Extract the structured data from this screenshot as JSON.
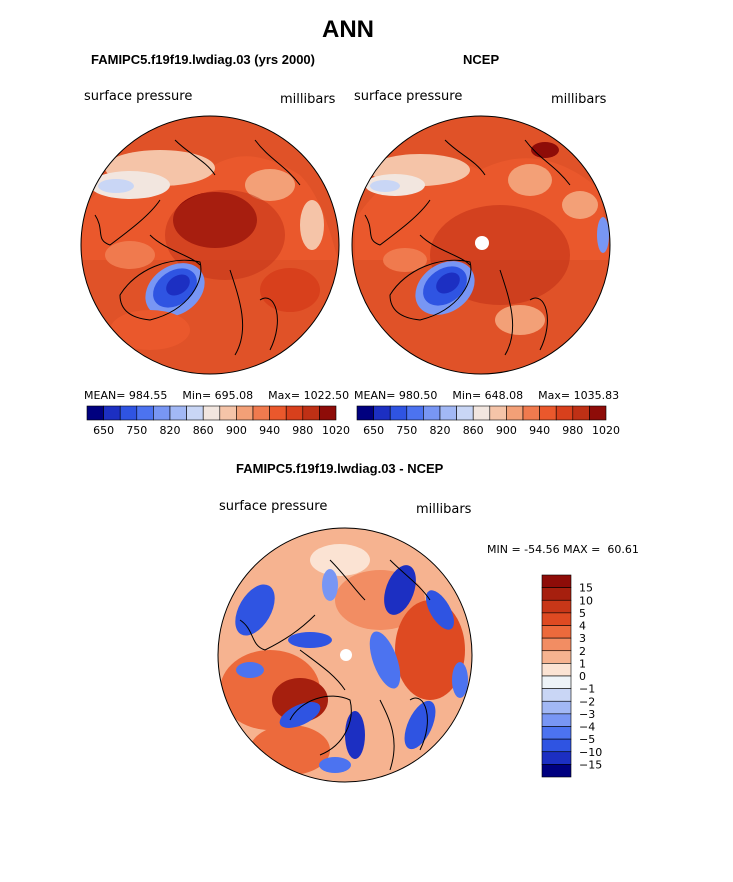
{
  "chart_data": {
    "type": "heatmap",
    "title": "ANN",
    "colors": {
      "abs_scale": [
        "#00007f",
        "#1c2fc2",
        "#2f54e2",
        "#4c73f0",
        "#7896f4",
        "#a2b8f5",
        "#c9d6f5",
        "#f2e6df",
        "#f5c4a8",
        "#f3a077",
        "#f07a4e",
        "#ea582c",
        "#d8401c",
        "#bf3015",
        "#8e0c08"
      ],
      "diff_scale": [
        "#00007f",
        "#1c2fc2",
        "#2f54e2",
        "#4c73f0",
        "#7896f4",
        "#a2b8f5",
        "#c9d6f5",
        "#eef3f7",
        "#fbe3d3",
        "#f6b390",
        "#f28d63",
        "#ec6a3c",
        "#de4a22",
        "#c83718",
        "#a61f0e",
        "#8e0c08"
      ]
    },
    "panels": [
      {
        "title": "FAMIPC5.f19f19.lwdiag.03 (yrs 2000)",
        "variable": "surface pressure",
        "units": "millibars",
        "mean": "984.55",
        "min": "695.08",
        "max": "1022.50",
        "mean_label": "MEAN=",
        "min_label": "Min=",
        "max_label": "Max=",
        "colorbar_levels": [
          "650",
          "750",
          "820",
          "860",
          "900",
          "940",
          "980",
          "1020"
        ]
      },
      {
        "title": "NCEP",
        "variable": "surface pressure",
        "units": "millibars",
        "mean": "980.50",
        "min": "648.08",
        "max": "1035.83",
        "mean_label": "MEAN=",
        "min_label": "Min=",
        "max_label": "Max=",
        "colorbar_levels": [
          "650",
          "750",
          "820",
          "860",
          "900",
          "940",
          "980",
          "1020"
        ]
      },
      {
        "title": "FAMIPC5.f19f19.lwdiag.03 - NCEP",
        "variable": "surface pressure",
        "units": "millibars",
        "min": "-54.56",
        "max": "60.61",
        "range_text": "MIN = -54.56 MAX =  60.61",
        "colorbar_levels": [
          "15",
          "10",
          "5",
          "4",
          "3",
          "2",
          "1",
          "0",
          "−1",
          "−2",
          "−3",
          "−4",
          "−5",
          "−10",
          "−15"
        ]
      }
    ]
  }
}
